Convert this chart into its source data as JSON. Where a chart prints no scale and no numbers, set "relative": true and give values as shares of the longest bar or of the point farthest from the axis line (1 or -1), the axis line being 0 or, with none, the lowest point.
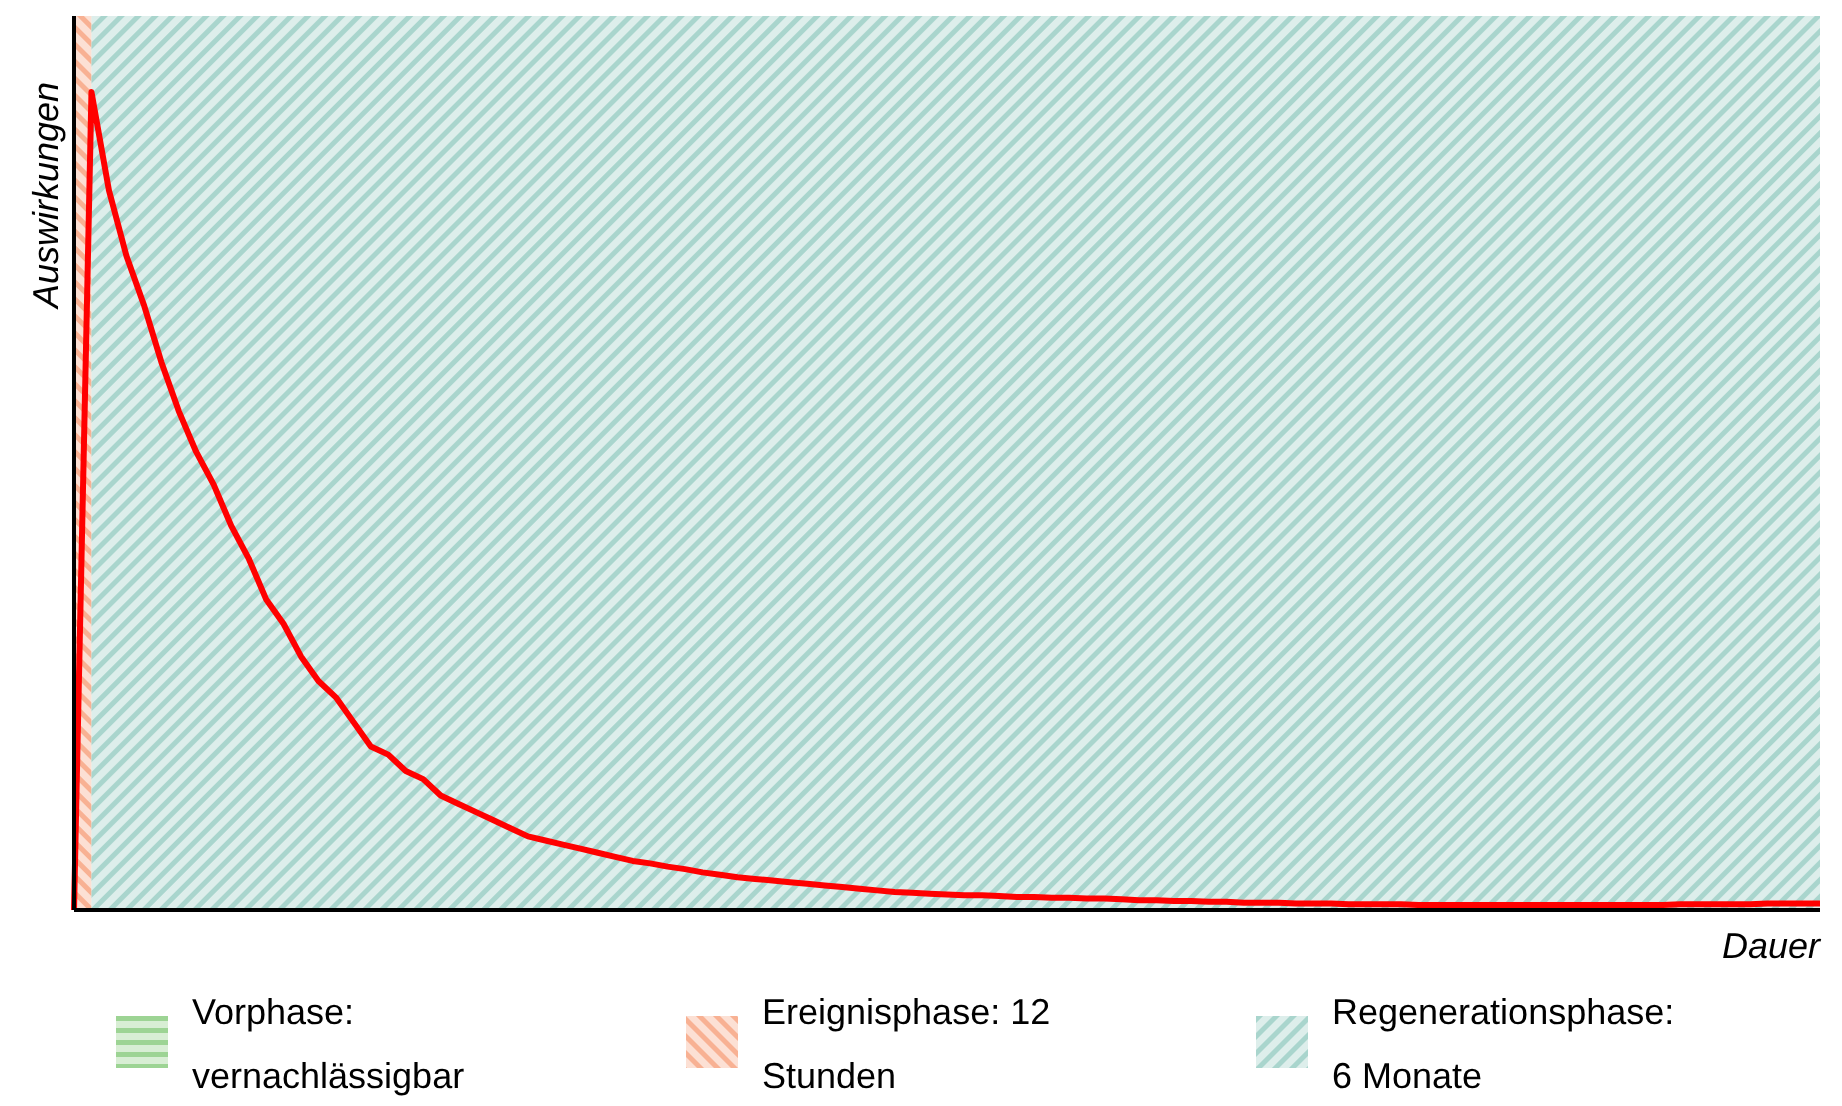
{
  "chart_data": {
    "type": "line",
    "relative": true,
    "xlabel": "Dauer",
    "ylabel": "Auswirkungen",
    "categories": [
      null,
      null,
      null,
      null,
      null,
      null,
      null,
      null,
      null,
      null,
      null,
      null,
      null,
      null,
      null,
      null,
      null,
      null,
      null,
      null,
      null,
      null,
      null,
      null,
      null,
      null,
      null,
      null,
      null,
      null,
      null,
      null,
      null,
      null,
      null,
      null,
      null,
      null,
      null,
      null,
      null,
      null,
      null,
      null,
      null,
      null,
      null,
      null,
      null,
      null,
      null,
      null,
      null,
      null,
      null,
      null,
      null,
      null,
      null,
      null,
      null,
      null,
      null,
      null,
      null,
      null,
      null,
      null,
      null,
      null,
      null,
      null,
      null,
      null,
      null,
      null,
      null,
      null,
      null,
      null,
      null,
      null,
      null,
      null,
      null,
      null,
      null,
      null,
      null,
      null,
      null,
      null,
      null,
      null,
      null,
      null,
      null,
      null,
      null,
      null,
      null
    ],
    "series": [
      {
        "color": "#ff0000",
        "values": [
          0,
          1,
          0.88,
          0.8,
          0.74,
          0.67,
          0.61,
          0.56,
          0.52,
          0.47,
          0.43,
          0.38,
          0.35,
          0.31,
          0.28,
          0.26,
          0.23,
          0.2,
          0.19,
          0.17,
          0.16,
          0.14,
          0.13,
          0.12,
          0.11,
          0.1,
          0.09,
          0.085,
          0.08,
          0.075,
          0.07,
          0.065,
          0.06,
          0.057,
          0.053,
          0.05,
          0.046,
          0.043,
          0.04,
          0.038,
          0.036,
          0.034,
          0.032,
          0.03,
          0.028,
          0.026,
          0.024,
          0.022,
          0.021,
          0.02,
          0.019,
          0.018,
          0.018,
          0.017,
          0.016,
          0.016,
          0.015,
          0.015,
          0.014,
          0.014,
          0.013,
          0.012,
          0.012,
          0.011,
          0.011,
          0.01,
          0.01,
          0.009,
          0.009,
          0.009,
          0.008,
          0.008,
          0.008,
          0.007,
          0.007,
          0.007,
          0.007,
          0.006,
          0.006,
          0.006,
          0.006,
          0.006,
          0.006,
          0.006,
          0.006,
          0.006,
          0.006,
          0.006,
          0.006,
          0.006,
          0.006,
          0.006,
          0.007,
          0.007,
          0.007,
          0.007,
          0.007,
          0.008,
          0.008,
          0.008,
          0.008
        ]
      }
    ],
    "annotations": [
      "Vorphase: vernachlässigbar",
      "Ereignisphase: 12 Stunden",
      "Regenerationsphase: 6 Monate"
    ]
  }
}
